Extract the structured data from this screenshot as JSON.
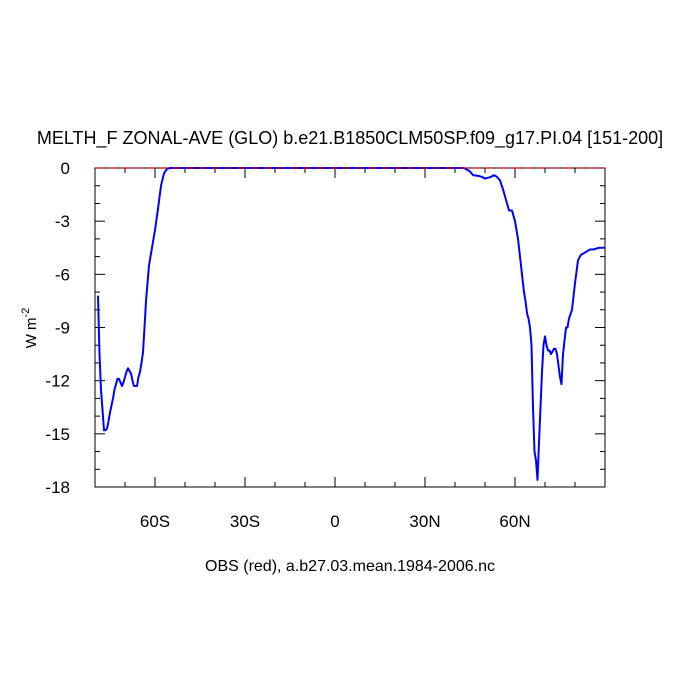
{
  "chart_data": {
    "type": "line",
    "title": "MELTH_F ZONAL-AVE (GLO) b.e21.B1850CLM50SP.f09_g17.PI.04 [151-200]",
    "ylabel_main": "W m",
    "ylabel_sup": "-2",
    "footnote": "OBS (red), a.b27.03.mean.1984-2006.nc",
    "xlim": [
      -80,
      90
    ],
    "ylim": [
      -18,
      0
    ],
    "x_ticks": [
      {
        "value": -60,
        "label": "60S"
      },
      {
        "value": -30,
        "label": "30S"
      },
      {
        "value": 0,
        "label": "0"
      },
      {
        "value": 30,
        "label": "30N"
      },
      {
        "value": 60,
        "label": "60N"
      }
    ],
    "y_ticks": [
      {
        "value": 0,
        "label": "0"
      },
      {
        "value": -3,
        "label": "-3"
      },
      {
        "value": -6,
        "label": "-6"
      },
      {
        "value": -9,
        "label": "-9"
      },
      {
        "value": -12,
        "label": "-12"
      },
      {
        "value": -15,
        "label": "-15"
      },
      {
        "value": -18,
        "label": "-18"
      }
    ],
    "colors": {
      "model": "#0000ff",
      "obs": "#cc0000"
    },
    "series": [
      {
        "color_key": "model",
        "x": [
          -79,
          -78.5,
          -78,
          -77,
          -76.5,
          -76,
          -75.5,
          -75,
          -74,
          -73.5,
          -73,
          -72.5,
          -72,
          -71,
          -70.5,
          -70,
          -69.5,
          -69,
          -68,
          -67.5,
          -67,
          -66,
          -65.5,
          -65,
          -64.5,
          -64,
          -63.5,
          -63,
          -62,
          -61,
          -60,
          -59,
          -58,
          -57,
          -56,
          -55,
          -54,
          -52,
          -40,
          0,
          30,
          43,
          45,
          46,
          48,
          49,
          50,
          52,
          53,
          54,
          55,
          56,
          57,
          58,
          59,
          60,
          61,
          62,
          63,
          63.5,
          64,
          64.5,
          65,
          65.5,
          66,
          66.5,
          67,
          67.5,
          68,
          69,
          69.5,
          70,
          70.5,
          71,
          71.5,
          72,
          73,
          73.5,
          74,
          75,
          75.5,
          76,
          77,
          77.5,
          78,
          79,
          80,
          81,
          82,
          83,
          84,
          85,
          86,
          88,
          90
        ],
        "y": [
          -7.2,
          -10.5,
          -12.5,
          -14.8,
          -14.8,
          -14.7,
          -14.3,
          -13.8,
          -13.0,
          -12.5,
          -12.2,
          -11.9,
          -11.9,
          -12.3,
          -12.1,
          -11.8,
          -11.5,
          -11.3,
          -11.6,
          -12.0,
          -12.3,
          -12.3,
          -11.8,
          -11.5,
          -11.0,
          -10.4,
          -9.0,
          -7.5,
          -5.5,
          -4.5,
          -3.5,
          -2.3,
          -1.0,
          -0.3,
          -0.05,
          0,
          0,
          0,
          0,
          0,
          0,
          0,
          -0.2,
          -0.4,
          -0.45,
          -0.5,
          -0.6,
          -0.5,
          -0.4,
          -0.5,
          -0.7,
          -1.2,
          -1.8,
          -2.4,
          -2.4,
          -3.0,
          -4.0,
          -5.5,
          -7.0,
          -7.5,
          -8.2,
          -8.5,
          -9.0,
          -10.0,
          -13.5,
          -16.0,
          -16.5,
          -17.6,
          -15.5,
          -11.5,
          -10.0,
          -9.5,
          -10.0,
          -10.3,
          -10.3,
          -10.5,
          -10.2,
          -10.2,
          -10.5,
          -11.8,
          -12.2,
          -10.5,
          -9.0,
          -9.0,
          -8.5,
          -8.0,
          -6.5,
          -5.2,
          -4.9,
          -4.8,
          -4.7,
          -4.6,
          -4.6,
          -4.5,
          -4.5
        ]
      },
      {
        "color_key": "obs",
        "x": [
          -80,
          90
        ],
        "y": [
          0,
          0
        ]
      }
    ]
  }
}
